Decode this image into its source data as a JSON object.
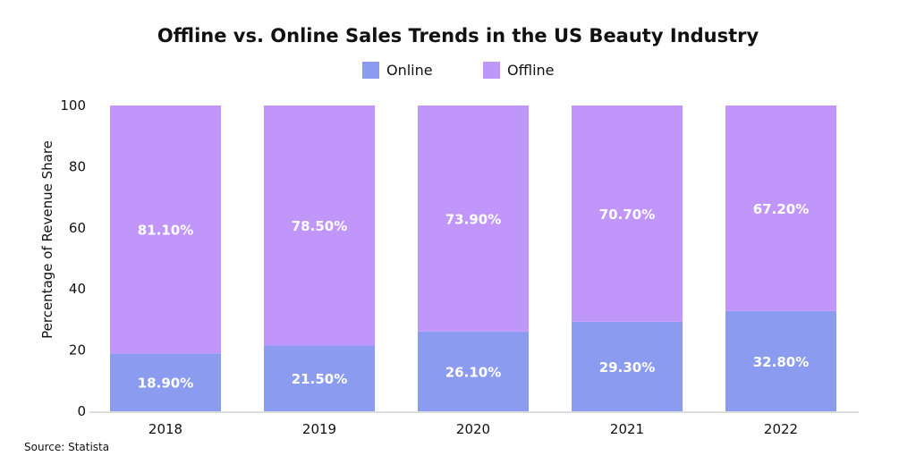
{
  "chart_data": {
    "type": "bar",
    "stacked": true,
    "title": "Offline vs. Online Sales Trends in the US Beauty Industry",
    "xlabel": "",
    "ylabel": "Percentage of Revenue Share",
    "ylim": [
      0,
      100
    ],
    "yticks": [
      0,
      20,
      40,
      60,
      80,
      100
    ],
    "categories": [
      "2018",
      "2019",
      "2020",
      "2021",
      "2022"
    ],
    "series": [
      {
        "name": "Online",
        "color": "#8b9cf0",
        "values": [
          18.9,
          21.5,
          26.1,
          29.3,
          32.8
        ],
        "labels": [
          "18.90%",
          "21.50%",
          "26.10%",
          "29.30%",
          "32.80%"
        ]
      },
      {
        "name": "Offline",
        "color": "#c196fb",
        "values": [
          81.1,
          78.5,
          73.9,
          70.7,
          67.2
        ],
        "labels": [
          "81.10%",
          "78.50%",
          "73.90%",
          "70.70%",
          "67.20%"
        ]
      }
    ],
    "legend": "top-center",
    "grid": false,
    "source": "Source: Statista"
  }
}
